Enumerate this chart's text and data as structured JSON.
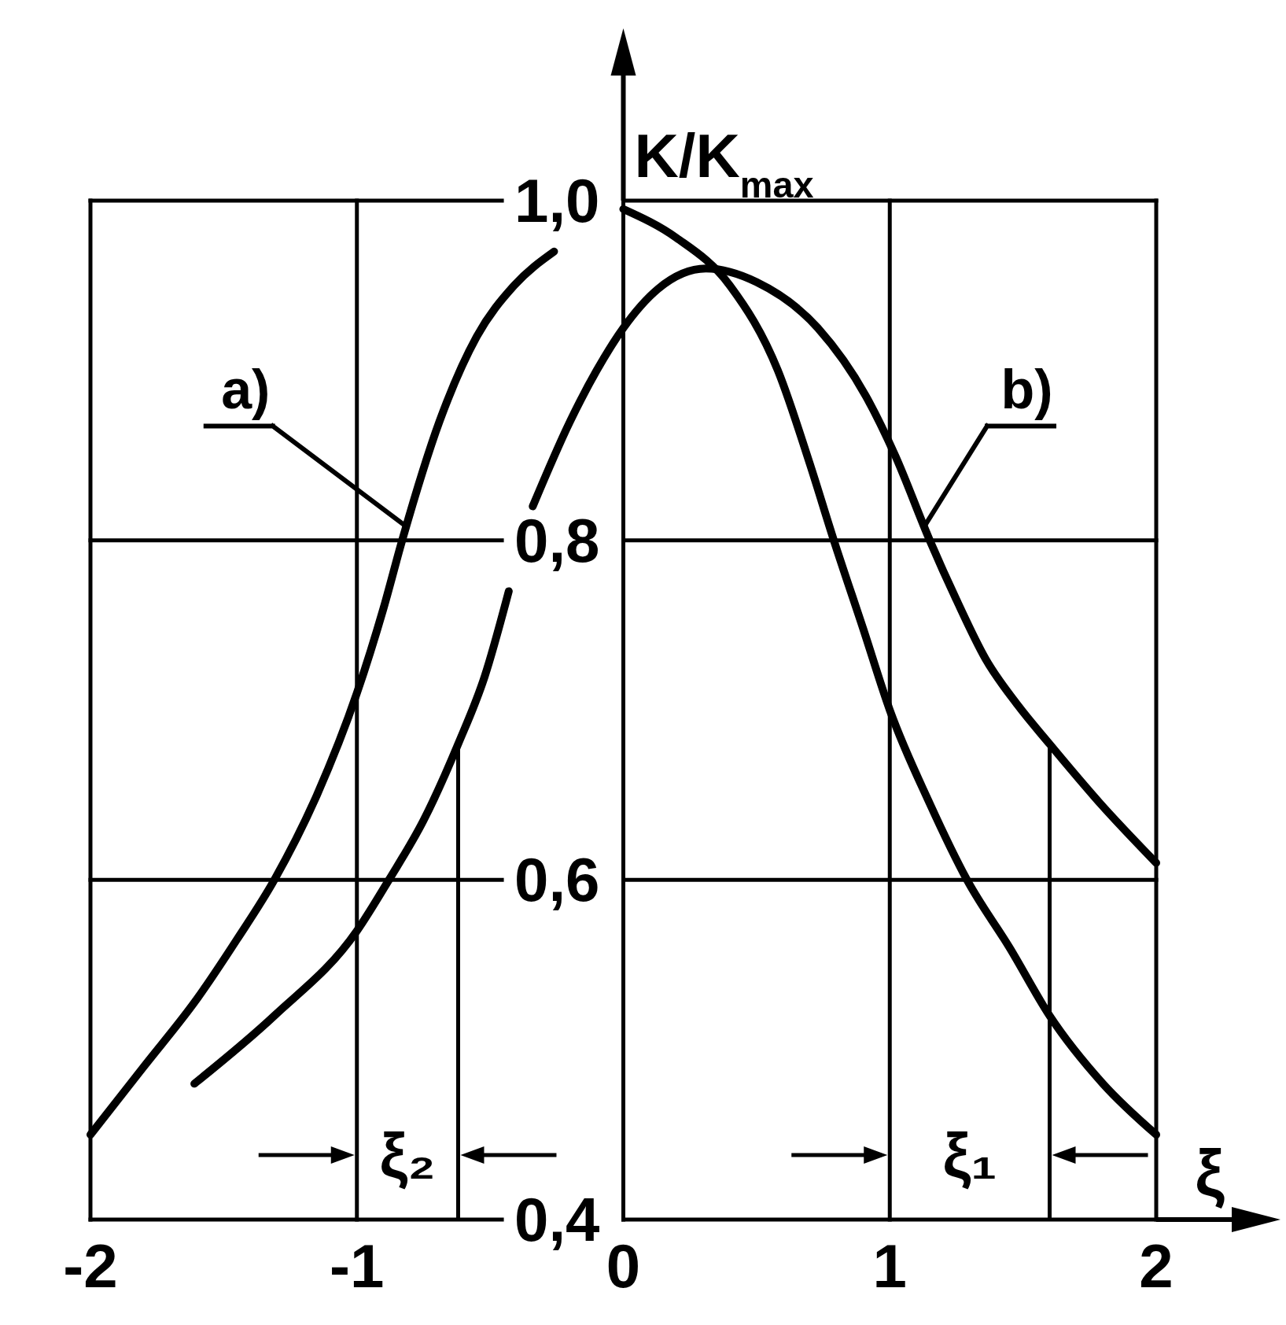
{
  "chart_data": {
    "type": "line",
    "xlabel": "ξ",
    "ylabel": "K/K$_{max}$",
    "xlim": [
      -2,
      2
    ],
    "ylim": [
      0.4,
      1.0
    ],
    "xticks": [
      -2,
      -1,
      0,
      1,
      2
    ],
    "yticks": [
      {
        "value": 0.4,
        "label": "0,4"
      },
      {
        "value": 0.6,
        "label": "0,6"
      },
      {
        "value": 0.8,
        "label": "0,8"
      },
      {
        "value": 1.0,
        "label": "1,0"
      }
    ],
    "grid": true,
    "series": [
      {
        "name": "a)",
        "color": "#000000",
        "x": [
          -2,
          -1.8,
          -1.6,
          -1.45,
          -1.31,
          -1.15,
          -1,
          -0.9,
          -0.83,
          -0.69,
          -0.55,
          -0.41,
          -0.26,
          -0.13,
          0,
          0.2,
          0.4,
          0.58,
          0.7,
          0.79,
          0.9,
          1.0,
          1.15,
          1.29,
          1.45,
          1.6,
          1.8,
          2
        ],
        "values": [
          0.45,
          0.49,
          0.53,
          0.565,
          0.6,
          0.65,
          0.71,
          0.76,
          0.8,
          0.87,
          0.92,
          0.95,
          0.97,
          null,
          0.995,
          0.978,
          0.95,
          0.9,
          0.845,
          0.8,
          0.748,
          0.7,
          0.645,
          0.6,
          0.56,
          0.52,
          0.48,
          0.45
        ]
      },
      {
        "name": "b)",
        "color": "#000000",
        "x": [
          -1.61,
          -1.31,
          -1,
          -0.88,
          -0.75,
          -0.62,
          -0.52,
          -0.43,
          -0.38,
          -0.34,
          -0.2,
          -0.1,
          0,
          0.13,
          0.31,
          0.5,
          0.73,
          0.91,
          1.02,
          1.15,
          1.25,
          1.36,
          1.48,
          1.6,
          1.79,
          2
        ],
        "values": [
          0.48,
          0.52,
          0.57,
          0.6,
          0.635,
          0.68,
          0.72,
          0.77,
          null,
          0.82,
          0.87,
          0.9,
          0.925,
          0.948,
          0.96,
          0.952,
          0.925,
          0.885,
          0.85,
          0.8,
          0.765,
          0.73,
          0.703,
          0.68,
          0.645,
          0.61
        ]
      }
    ],
    "ref_lines": [
      {
        "axis": "x",
        "value": -0.62,
        "label": "ξ₂"
      },
      {
        "axis": "x",
        "value": 1.6,
        "label": "ξ₁"
      }
    ]
  }
}
